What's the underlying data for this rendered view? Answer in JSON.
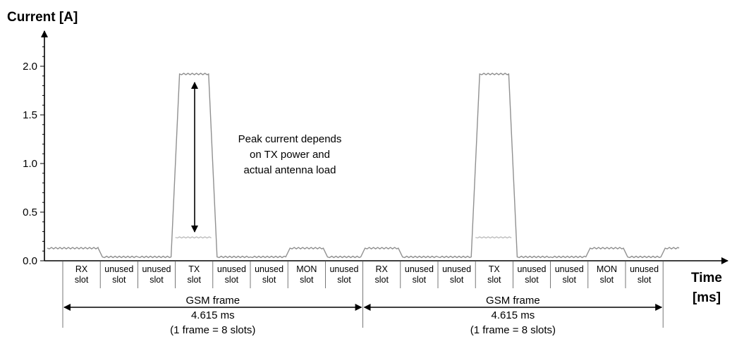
{
  "chart_data": {
    "type": "line",
    "ylabel": "Current [A]",
    "xlabel": [
      "Time",
      "[ms]"
    ],
    "ylim": [
      0,
      2.4
    ],
    "y_ticks": [
      "0.0",
      "0.5",
      "1.0",
      "1.5",
      "2.0"
    ],
    "y_tick_values": [
      0.0,
      0.5,
      1.0,
      1.5,
      2.0
    ],
    "slots": [
      {
        "line1": "RX",
        "line2": "slot"
      },
      {
        "line1": "unused",
        "line2": "slot"
      },
      {
        "line1": "unused",
        "line2": "slot"
      },
      {
        "line1": "TX",
        "line2": "slot"
      },
      {
        "line1": "unused",
        "line2": "slot"
      },
      {
        "line1": "unused",
        "line2": "slot"
      },
      {
        "line1": "MON",
        "line2": "slot"
      },
      {
        "line1": "unused",
        "line2": "slot"
      },
      {
        "line1": "RX",
        "line2": "slot"
      },
      {
        "line1": "unused",
        "line2": "slot"
      },
      {
        "line1": "unused",
        "line2": "slot"
      },
      {
        "line1": "TX",
        "line2": "slot"
      },
      {
        "line1": "unused",
        "line2": "slot"
      },
      {
        "line1": "unused",
        "line2": "slot"
      },
      {
        "line1": "MON",
        "line2": "slot"
      },
      {
        "line1": "unused",
        "line2": "slot"
      }
    ],
    "series": [
      {
        "slot_current_a": [
          0.13,
          0.04,
          0.04,
          1.92,
          0.04,
          0.04,
          0.13,
          0.04,
          0.13,
          0.04,
          0.04,
          1.92,
          0.04,
          0.04,
          0.13,
          0.04,
          0.13
        ],
        "color": "#909090"
      },
      {
        "slot_current_a": [
          null,
          null,
          null,
          0.24,
          null,
          null,
          null,
          null,
          null,
          null,
          null,
          0.24,
          null,
          null,
          null,
          null
        ],
        "color": "#c0c0c0"
      }
    ],
    "frames": [
      {
        "lines": [
          "GSM frame",
          "4.615 ms",
          "(1 frame = 8 slots)"
        ]
      },
      {
        "lines": [
          "GSM frame",
          "4.615 ms",
          "(1 frame = 8 slots)"
        ]
      }
    ],
    "annotation": [
      "Peak current depends",
      "on TX power and",
      "actual antenna load"
    ],
    "colors": {
      "signal": "#909090",
      "low_signal": "#c0c0c0",
      "axis": "#000000"
    }
  }
}
